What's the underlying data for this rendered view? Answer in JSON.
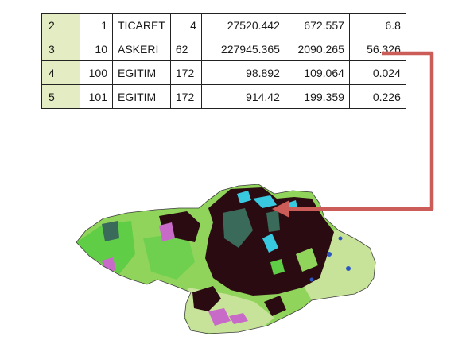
{
  "table": {
    "rows": [
      [
        "2",
        "1",
        "TICARET",
        "4",
        "27520.442",
        "672.557",
        "6.8"
      ],
      [
        "3",
        "10",
        "ASKERI",
        "62",
        "227945.365",
        "2090.265",
        "56.326"
      ],
      [
        "4",
        "100",
        "EGITIM",
        "172",
        "98.892",
        "109.064",
        "0.024"
      ],
      [
        "5",
        "101",
        "EGITIM",
        "172",
        "914.42",
        "199.359",
        "0.226"
      ]
    ],
    "row_header_color": "#e3ecc3"
  },
  "map": {
    "colors": {
      "dark": "#2b0b12",
      "light_green": "#90d45c",
      "bright_green": "#5fcd45",
      "pale_green": "#c7e39a",
      "teal": "#3a6b5a",
      "cyan": "#38c8e0",
      "magenta": "#c86bc8",
      "blue": "#2c55c0"
    }
  },
  "connector": {
    "color": "#cc5c58",
    "from_row": "3"
  }
}
